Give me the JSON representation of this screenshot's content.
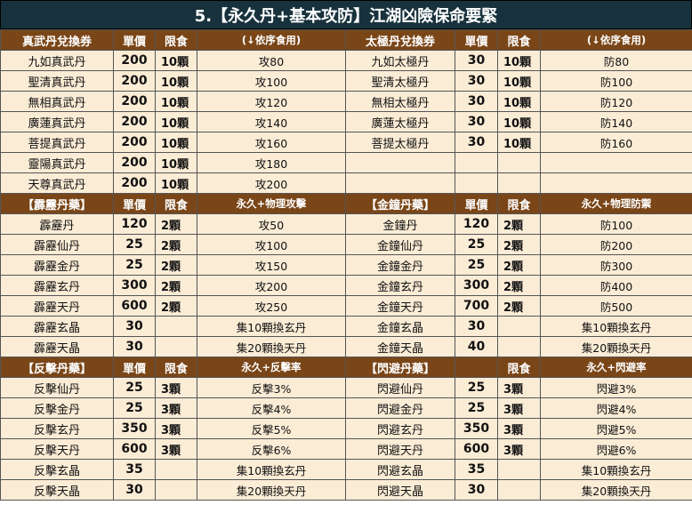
{
  "title": "5.【永久丹+基本攻防】江湖凶險保命要緊",
  "section1": {
    "left_header": [
      "真武丹兌換券",
      "單價",
      "限食",
      "(↓依序食用)"
    ],
    "right_header": [
      "太極丹兌換券",
      "單價",
      "限食",
      "(↓依序食用)"
    ],
    "rows": [
      {
        "l": [
          "九如真武丹",
          "200",
          "10顆",
          "攻80"
        ],
        "r": [
          "九如太極丹",
          "30",
          "10顆",
          "防80"
        ]
      },
      {
        "l": [
          "聖清真武丹",
          "200",
          "10顆",
          "攻100"
        ],
        "r": [
          "聖清太極丹",
          "30",
          "10顆",
          "防100"
        ]
      },
      {
        "l": [
          "無相真武丹",
          "200",
          "10顆",
          "攻120"
        ],
        "r": [
          "無相太極丹",
          "30",
          "10顆",
          "防120"
        ]
      },
      {
        "l": [
          "廣蓮真武丹",
          "200",
          "10顆",
          "攻140"
        ],
        "r": [
          "廣蓮太極丹",
          "30",
          "10顆",
          "防140"
        ]
      },
      {
        "l": [
          "菩提真武丹",
          "200",
          "10顆",
          "攻160"
        ],
        "r": [
          "菩提太極丹",
          "30",
          "10顆",
          "防160"
        ]
      },
      {
        "l": [
          "靈陽真武丹",
          "200",
          "10顆",
          "攻180"
        ],
        "r": [
          "",
          "",
          "",
          ""
        ]
      },
      {
        "l": [
          "天尊真武丹",
          "200",
          "10顆",
          "攻200"
        ],
        "r": [
          "",
          "",
          "",
          ""
        ]
      }
    ]
  },
  "section2": {
    "left_header": [
      "【霹靂丹藥】",
      "單價",
      "限食",
      "永久+物理攻擊"
    ],
    "right_header": [
      "【金鐘丹藥】",
      "單價",
      "限食",
      "永久+物理防禦"
    ],
    "rows": [
      {
        "l": [
          "霹靂丹",
          "120",
          "2顆",
          "攻50"
        ],
        "r": [
          "金鐘丹",
          "120",
          "2顆",
          "防100"
        ]
      },
      {
        "l": [
          "霹靂仙丹",
          "25",
          "2顆",
          "攻100"
        ],
        "r": [
          "金鐘仙丹",
          "25",
          "2顆",
          "防200"
        ]
      },
      {
        "l": [
          "霹靂金丹",
          "25",
          "2顆",
          "攻150"
        ],
        "r": [
          "金鐘金丹",
          "25",
          "2顆",
          "防300"
        ]
      },
      {
        "l": [
          "霹靂玄丹",
          "300",
          "2顆",
          "攻200"
        ],
        "r": [
          "金鐘玄丹",
          "300",
          "2顆",
          "防400"
        ]
      },
      {
        "l": [
          "霹靂天丹",
          "600",
          "2顆",
          "攻250"
        ],
        "r": [
          "金鐘天丹",
          "700",
          "2顆",
          "防500"
        ]
      },
      {
        "l": [
          "霹靂玄晶",
          "30",
          "",
          "集10顆換玄丹"
        ],
        "r": [
          "金鐘玄晶",
          "30",
          "",
          "集10顆換玄丹"
        ]
      },
      {
        "l": [
          "霹靂天晶",
          "30",
          "",
          "集20顆換天丹"
        ],
        "r": [
          "金鐘天晶",
          "40",
          "",
          "集20顆換天丹"
        ]
      }
    ]
  },
  "section3": {
    "left_header": [
      "【反擊丹藥】",
      "單價",
      "限食",
      "永久+反擊率"
    ],
    "right_header": [
      "【閃避丹藥】",
      "",
      "限食",
      "永久+閃避率"
    ],
    "rows": [
      {
        "l": [
          "反擊仙丹",
          "25",
          "3顆",
          "反擊3%"
        ],
        "r": [
          "閃避仙丹",
          "25",
          "3顆",
          "閃避3%"
        ]
      },
      {
        "l": [
          "反擊金丹",
          "25",
          "3顆",
          "反擊4%"
        ],
        "r": [
          "閃避金丹",
          "25",
          "3顆",
          "閃避4%"
        ]
      },
      {
        "l": [
          "反擊玄丹",
          "350",
          "3顆",
          "反擊5%"
        ],
        "r": [
          "閃避玄丹",
          "350",
          "3顆",
          "閃避5%"
        ]
      },
      {
        "l": [
          "反擊天丹",
          "600",
          "3顆",
          "反擊6%"
        ],
        "r": [
          "閃避天丹",
          "600",
          "3顆",
          "閃避6%"
        ]
      },
      {
        "l": [
          "反擊玄晶",
          "35",
          "",
          "集10顆換玄丹"
        ],
        "r": [
          "閃避玄晶",
          "35",
          "",
          "集10顆換玄丹"
        ]
      },
      {
        "l": [
          "反擊天晶",
          "30",
          "",
          "集20顆換天丹"
        ],
        "r": [
          "閃避天晶",
          "30",
          "",
          "集20顆換天丹"
        ]
      }
    ]
  }
}
